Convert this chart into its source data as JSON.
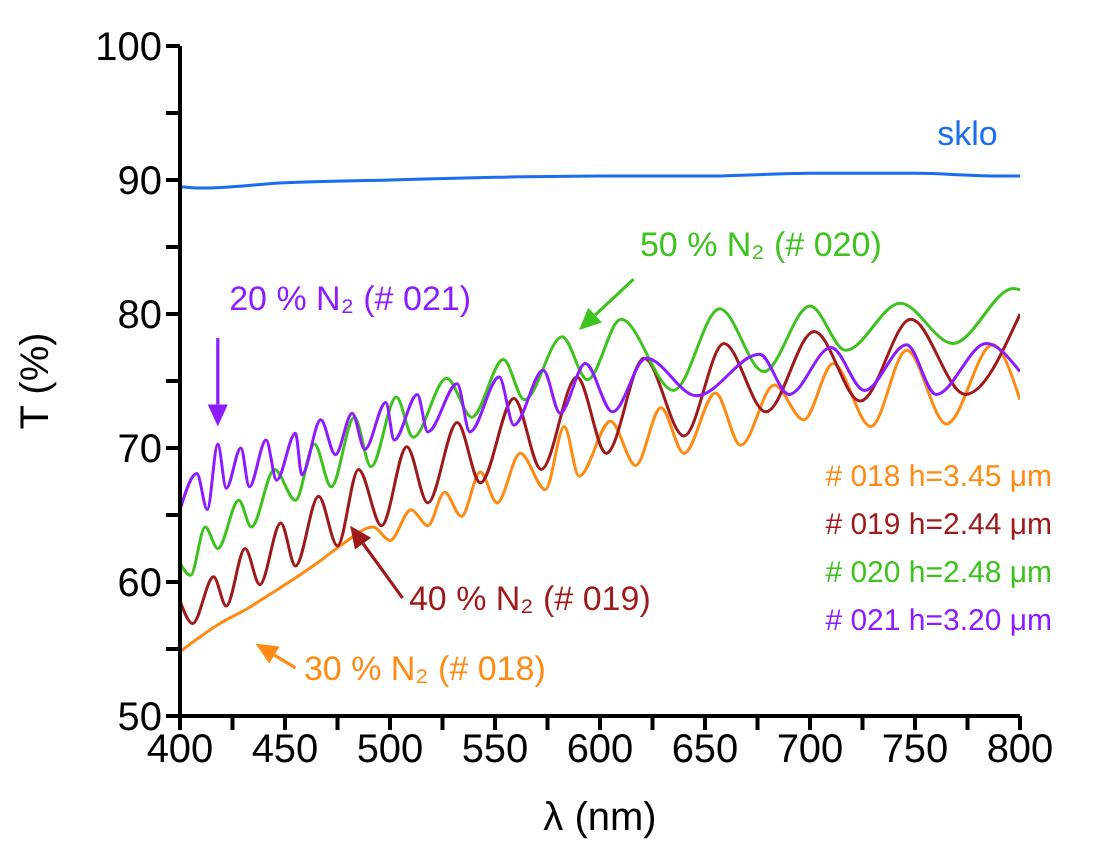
{
  "chart_data": {
    "type": "line",
    "xlabel": "λ (nm)",
    "ylabel": "T (%)",
    "xlim": [
      400,
      800
    ],
    "ylim": [
      50,
      100
    ],
    "xticks": [
      400,
      {
        "value": 425,
        "label": null
      },
      450,
      {
        "value": 475,
        "label": null
      },
      500,
      {
        "value": 525,
        "label": null
      },
      550,
      {
        "value": 575,
        "label": null
      },
      600,
      {
        "value": 625,
        "label": null
      },
      650,
      {
        "value": 675,
        "label": null
      },
      700,
      {
        "value": 725,
        "label": null
      },
      750,
      {
        "value": 775,
        "label": null
      },
      800
    ],
    "yticks": [
      50,
      {
        "value": 55,
        "label": null
      },
      60,
      {
        "value": 65,
        "label": null
      },
      70,
      {
        "value": 75,
        "label": null
      },
      80,
      {
        "value": 85,
        "label": null
      },
      90,
      {
        "value": 95,
        "label": null
      },
      100
    ],
    "series": [
      {
        "name": "sklo",
        "color": "#1a6cf0",
        "x": [
          400,
          410,
          450,
          500,
          550,
          600,
          650,
          700,
          750,
          790,
          800
        ],
        "values": [
          89.5,
          89.4,
          89.8,
          90.0,
          90.2,
          90.3,
          90.3,
          90.5,
          90.5,
          90.3,
          90.3
        ]
      },
      {
        "name": "30 % N₂ (# 018)",
        "color": "#ff8a14",
        "x": [
          400,
          419,
          433,
          443,
          454,
          467,
          478,
          492,
          500,
          510,
          518,
          526,
          534,
          543,
          551,
          562,
          574,
          583,
          590,
          605,
          617,
          629,
          640,
          655,
          667,
          683,
          697,
          711,
          729,
          746,
          765,
          787,
          800
        ],
        "values": [
          54.8,
          56.9,
          58.1,
          59.1,
          60.2,
          61.6,
          62.9,
          64.1,
          63.1,
          65.4,
          64.2,
          66.7,
          64.9,
          68.2,
          65.9,
          69.6,
          66.9,
          71.6,
          67.9,
          72.0,
          68.7,
          73.0,
          69.6,
          74.1,
          70.2,
          74.7,
          72.1,
          76.3,
          71.6,
          77.3,
          71.8,
          77.7,
          73.6
        ]
      },
      {
        "name": "40 % N₂ (# 019)",
        "color": "#9e1a1a",
        "x": [
          400,
          406,
          416,
          422,
          431,
          438,
          448,
          455,
          466,
          475,
          485,
          496,
          508,
          518,
          532,
          543,
          559,
          572,
          589,
          603,
          621,
          640,
          659,
          679,
          702,
          724,
          748,
          774,
          800
        ],
        "values": [
          58.6,
          56.9,
          60.4,
          58.2,
          62.5,
          59.8,
          64.4,
          61.2,
          66.4,
          62.7,
          68.4,
          64.2,
          70.1,
          65.9,
          71.9,
          67.4,
          73.7,
          68.4,
          75.3,
          69.6,
          76.7,
          70.9,
          77.8,
          72.7,
          78.7,
          73.5,
          79.6,
          74.0,
          80.0
        ]
      },
      {
        "name": "50 % N₂ (# 020)",
        "color": "#3dc21e",
        "x": [
          400,
          405,
          412,
          418,
          428,
          434,
          445,
          455,
          464,
          472,
          483,
          491,
          503,
          511,
          527,
          539,
          554,
          564,
          582,
          594,
          610,
          635,
          657,
          678,
          700,
          717,
          743,
          768,
          797,
          800
        ],
        "values": [
          61.4,
          60.5,
          64.1,
          62.5,
          66.1,
          64.1,
          68.4,
          66.1,
          70.3,
          67.1,
          72.3,
          68.6,
          73.8,
          70.8,
          75.2,
          72.3,
          76.6,
          73.6,
          78.3,
          75.1,
          79.6,
          74.3,
          80.4,
          75.7,
          80.6,
          77.3,
          80.8,
          77.8,
          81.9,
          81.8
        ]
      },
      {
        "name": "20 % N₂ (# 021)",
        "color": "#8c1cff",
        "x": [
          400,
          408,
          413,
          418,
          422,
          429,
          433,
          441,
          446,
          455,
          458,
          467,
          474,
          482,
          488,
          498,
          502,
          513,
          518,
          532,
          538,
          552,
          559,
          573,
          581,
          593,
          606,
          622,
          646,
          676,
          690,
          710,
          726,
          746,
          760,
          784,
          800
        ],
        "values": [
          65.4,
          68.1,
          65.4,
          70.3,
          67.0,
          70.0,
          67.1,
          70.6,
          67.6,
          71.1,
          68.0,
          72.1,
          69.5,
          72.6,
          69.9,
          73.4,
          70.6,
          74.0,
          71.2,
          74.8,
          71.2,
          75.3,
          71.7,
          75.8,
          72.6,
          76.3,
          72.7,
          76.7,
          73.9,
          77.0,
          74.0,
          77.5,
          74.3,
          77.7,
          74.0,
          77.8,
          75.7
        ]
      }
    ],
    "annotations": [
      "# 018 h=3.45 μm",
      "# 019 h=2.44 μm",
      "# 020 h=2.48 μm",
      "# 021 h=3.20 μm"
    ]
  }
}
